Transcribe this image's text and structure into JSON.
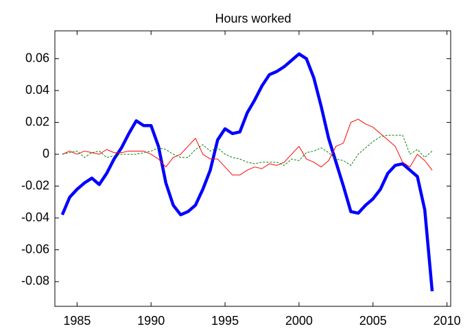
{
  "chart_data": {
    "type": "line",
    "title": "Hours worked",
    "x": [
      1984,
      1984.5,
      1985,
      1985.5,
      1986,
      1986.5,
      1987,
      1987.5,
      1988,
      1988.5,
      1989,
      1989.5,
      1990,
      1990.5,
      1991,
      1991.5,
      1992,
      1992.5,
      1993,
      1993.5,
      1994,
      1994.5,
      1995,
      1995.5,
      1996,
      1996.5,
      1997,
      1997.5,
      1998,
      1998.5,
      1999,
      1999.5,
      2000,
      2000.5,
      2001,
      2001.5,
      2002,
      2002.5,
      2003,
      2003.5,
      2004,
      2004.5,
      2005,
      2005.5,
      2006,
      2006.5,
      2007,
      2007.5,
      2008,
      2008.5,
      2009
    ],
    "series": [
      {
        "color": "#0000ff",
        "style": "thick",
        "values": [
          -0.038,
          -0.027,
          -0.022,
          -0.018,
          -0.015,
          -0.019,
          -0.012,
          -0.003,
          0.004,
          0.013,
          0.021,
          0.018,
          0.018,
          0.005,
          -0.018,
          -0.032,
          -0.038,
          -0.036,
          -0.032,
          -0.022,
          -0.01,
          0.009,
          0.016,
          0.013,
          0.014,
          0.026,
          0.034,
          0.043,
          0.05,
          0.052,
          0.055,
          0.059,
          0.063,
          0.06,
          0.048,
          0.03,
          0.01,
          -0.005,
          -0.02,
          -0.036,
          -0.037,
          -0.032,
          -0.028,
          -0.022,
          -0.012,
          -0.007,
          -0.006,
          -0.01,
          -0.014,
          -0.035,
          -0.086
        ]
      },
      {
        "color": "#ff0000",
        "style": "thin",
        "values": [
          0,
          0.002,
          0,
          0.002,
          0.001,
          0,
          0.003,
          0.001,
          0.001,
          0.002,
          0.002,
          0.002,
          0,
          -0.003,
          -0.008,
          -0.002,
          0,
          0.005,
          0.01,
          0,
          -0.003,
          -0.003,
          -0.008,
          -0.013,
          -0.013,
          -0.01,
          -0.008,
          -0.009,
          -0.006,
          -0.007,
          -0.005,
          0,
          0.005,
          -0.003,
          -0.005,
          -0.008,
          -0.004,
          0.005,
          0.007,
          0.02,
          0.022,
          0.019,
          0.017,
          0.013,
          0.009,
          0.005,
          -0.005,
          -0.008,
          0,
          -0.004,
          -0.01
        ]
      },
      {
        "color": "#008000",
        "style": "dashed",
        "values": [
          0,
          0.001,
          0.002,
          -0.002,
          0.001,
          0.002,
          -0.002,
          -0.001,
          0,
          0,
          0,
          0.001,
          0.002,
          0.004,
          0.003,
          0,
          -0.002,
          -0.002,
          0.003,
          0.006,
          0.002,
          0.004,
          0,
          -0.002,
          -0.003,
          -0.005,
          -0.006,
          -0.005,
          -0.005,
          -0.005,
          -0.007,
          -0.003,
          -0.004,
          0.001,
          0.002,
          0.004,
          0.001,
          -0.003,
          -0.004,
          -0.007,
          0,
          0.004,
          0.008,
          0.011,
          0.012,
          0.012,
          0.012,
          0,
          0.003,
          -0.002,
          0.002
        ]
      }
    ],
    "xlim": [
      1983.5,
      2010.25
    ],
    "xticks": [
      1985,
      1990,
      1995,
      2000,
      2005,
      2010
    ],
    "ylim": [
      -0.0955,
      0.0775
    ],
    "yticks": [
      -0.08,
      -0.06,
      -0.04,
      -0.02,
      0,
      0.02,
      0.04,
      0.06
    ],
    "grid": false
  }
}
